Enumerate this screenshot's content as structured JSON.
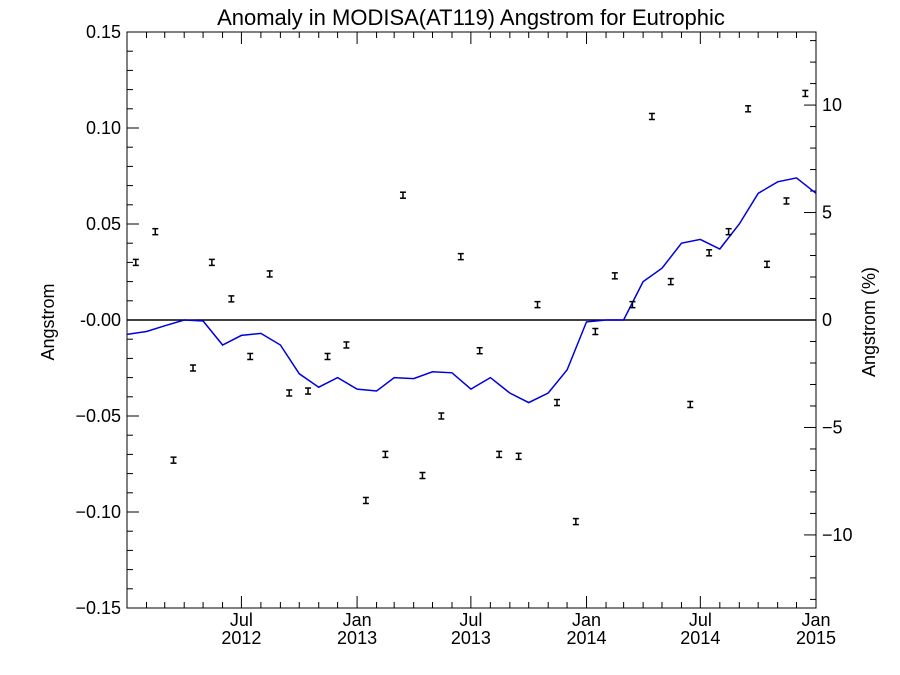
{
  "chart_data": {
    "type": "scatter",
    "title": "Anomaly in MODISA(AT119) Angstrom for Eutrophic",
    "ylabel": "Angstrom",
    "ylabel_right": "Angstrom (%)",
    "xlabel": "",
    "ylim": [
      -0.15,
      0.15
    ],
    "ylim_right": [
      -13.4,
      13.4
    ],
    "xlim": [
      "2012-01-01",
      "2015-01-01"
    ],
    "x_ticks": [
      {
        "date": "2012-07-01",
        "label_month": "Jul",
        "label_year": "2012"
      },
      {
        "date": "2013-01-01",
        "label_month": "Jan",
        "label_year": "2013"
      },
      {
        "date": "2013-07-01",
        "label_month": "Jul",
        "label_year": "2013"
      },
      {
        "date": "2014-01-01",
        "label_month": "Jan",
        "label_year": "2014"
      },
      {
        "date": "2014-07-01",
        "label_month": "Jul",
        "label_year": "2014"
      },
      {
        "date": "2015-01-01",
        "label_month": "Jan",
        "label_year": "2015"
      }
    ],
    "y_ticks": [
      {
        "value": 0.15,
        "label": "0.15"
      },
      {
        "value": 0.1,
        "label": "0.10"
      },
      {
        "value": 0.05,
        "label": "0.05"
      },
      {
        "value": 0.0,
        "label": "-0.00"
      },
      {
        "value": -0.05,
        "label": "−0.05"
      },
      {
        "value": -0.1,
        "label": "−0.10"
      },
      {
        "value": -0.15,
        "label": "−0.15"
      }
    ],
    "y_right_ticks": [
      {
        "value": 10,
        "label": "10"
      },
      {
        "value": 5,
        "label": "5"
      },
      {
        "value": 0,
        "label": "0"
      },
      {
        "value": -5,
        "label": "−5"
      },
      {
        "value": -10,
        "label": "−10"
      }
    ],
    "points": [
      {
        "date": "2012-01-15",
        "value": 0.03
      },
      {
        "date": "2012-02-15",
        "value": 0.046
      },
      {
        "date": "2012-03-15",
        "value": -0.073
      },
      {
        "date": "2012-04-15",
        "value": -0.025
      },
      {
        "date": "2012-05-15",
        "value": 0.03
      },
      {
        "date": "2012-06-15",
        "value": 0.011
      },
      {
        "date": "2012-07-15",
        "value": -0.019
      },
      {
        "date": "2012-08-15",
        "value": 0.024
      },
      {
        "date": "2012-09-15",
        "value": -0.038
      },
      {
        "date": "2012-10-15",
        "value": -0.037
      },
      {
        "date": "2012-11-15",
        "value": -0.019
      },
      {
        "date": "2012-12-15",
        "value": -0.013
      },
      {
        "date": "2013-01-15",
        "value": -0.094
      },
      {
        "date": "2013-02-15",
        "value": -0.07
      },
      {
        "date": "2013-03-15",
        "value": 0.065
      },
      {
        "date": "2013-04-15",
        "value": -0.081
      },
      {
        "date": "2013-05-15",
        "value": -0.05
      },
      {
        "date": "2013-06-15",
        "value": 0.033
      },
      {
        "date": "2013-07-15",
        "value": -0.016
      },
      {
        "date": "2013-08-15",
        "value": -0.07
      },
      {
        "date": "2013-09-15",
        "value": -0.071
      },
      {
        "date": "2013-10-15",
        "value": 0.008
      },
      {
        "date": "2013-11-15",
        "value": -0.043
      },
      {
        "date": "2013-12-15",
        "value": -0.105
      },
      {
        "date": "2014-01-15",
        "value": -0.006
      },
      {
        "date": "2014-02-15",
        "value": 0.023
      },
      {
        "date": "2014-03-15",
        "value": 0.008
      },
      {
        "date": "2014-04-15",
        "value": 0.106
      },
      {
        "date": "2014-05-15",
        "value": 0.02
      },
      {
        "date": "2014-06-15",
        "value": -0.044
      },
      {
        "date": "2014-07-15",
        "value": 0.035
      },
      {
        "date": "2014-08-15",
        "value": 0.046
      },
      {
        "date": "2014-09-15",
        "value": 0.11
      },
      {
        "date": "2014-10-15",
        "value": 0.029
      },
      {
        "date": "2014-11-15",
        "value": 0.062
      },
      {
        "date": "2014-12-15",
        "value": 0.118
      }
    ],
    "running_mean": [
      {
        "date": "2012-01-01",
        "value": -0.0075
      },
      {
        "date": "2012-02-01",
        "value": -0.006
      },
      {
        "date": "2012-03-01",
        "value": -0.003
      },
      {
        "date": "2012-04-01",
        "value": 0.0
      },
      {
        "date": "2012-05-01",
        "value": -0.0005
      },
      {
        "date": "2012-06-01",
        "value": -0.013
      },
      {
        "date": "2012-07-01",
        "value": -0.008
      },
      {
        "date": "2012-08-01",
        "value": -0.007
      },
      {
        "date": "2012-09-01",
        "value": -0.013
      },
      {
        "date": "2012-10-01",
        "value": -0.028
      },
      {
        "date": "2012-11-01",
        "value": -0.035
      },
      {
        "date": "2012-12-01",
        "value": -0.03
      },
      {
        "date": "2013-01-01",
        "value": -0.036
      },
      {
        "date": "2013-02-01",
        "value": -0.037
      },
      {
        "date": "2013-03-01",
        "value": -0.03
      },
      {
        "date": "2013-04-01",
        "value": -0.0305
      },
      {
        "date": "2013-05-01",
        "value": -0.027
      },
      {
        "date": "2013-06-01",
        "value": -0.0275
      },
      {
        "date": "2013-07-01",
        "value": -0.036
      },
      {
        "date": "2013-08-01",
        "value": -0.03
      },
      {
        "date": "2013-09-01",
        "value": -0.038
      },
      {
        "date": "2013-10-01",
        "value": -0.043
      },
      {
        "date": "2013-11-01",
        "value": -0.038
      },
      {
        "date": "2013-12-01",
        "value": -0.026
      },
      {
        "date": "2014-01-01",
        "value": -0.001
      },
      {
        "date": "2014-02-01",
        "value": 0.0
      },
      {
        "date": "2014-03-01",
        "value": 0.0
      },
      {
        "date": "2014-04-01",
        "value": 0.02
      },
      {
        "date": "2014-05-01",
        "value": 0.027
      },
      {
        "date": "2014-06-01",
        "value": 0.04
      },
      {
        "date": "2014-07-01",
        "value": 0.042
      },
      {
        "date": "2014-08-01",
        "value": 0.037
      },
      {
        "date": "2014-09-01",
        "value": 0.05
      },
      {
        "date": "2014-10-01",
        "value": 0.066
      },
      {
        "date": "2014-11-01",
        "value": 0.072
      },
      {
        "date": "2014-12-01",
        "value": 0.074
      },
      {
        "date": "2015-01-01",
        "value": 0.066
      }
    ],
    "zero_line": true,
    "grid": false,
    "colors": {
      "points": "#000000",
      "running_mean": "#0000dd",
      "axes": "#000000"
    }
  }
}
